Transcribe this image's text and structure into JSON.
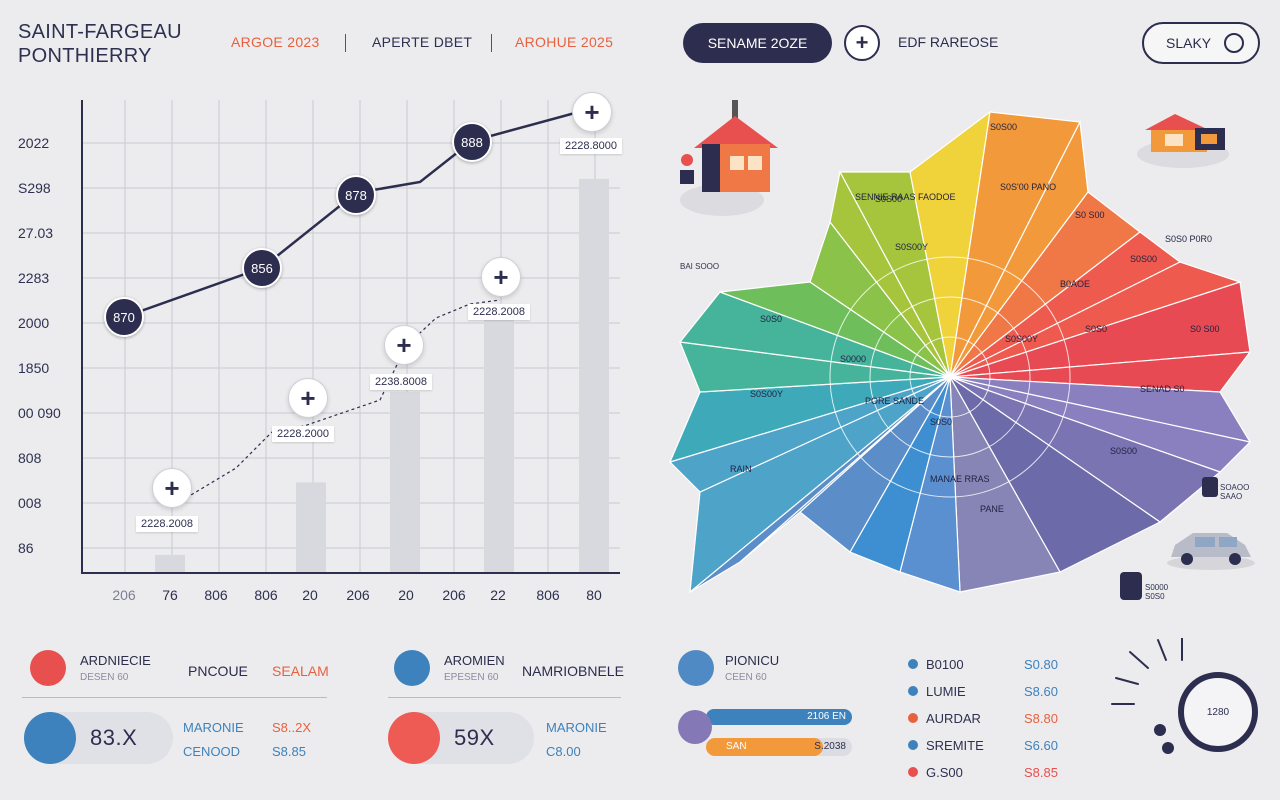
{
  "header": {
    "brand": "SAINT-FARGEAU\nPONTHIERRY",
    "links": [
      {
        "label": "ARGOE 2023",
        "color": "#e8613f"
      },
      {
        "label": "APERTE DBET",
        "color": "#2e3050"
      },
      {
        "label": "AROHUE 2025",
        "color": "#e8613f"
      }
    ],
    "scenario_button": "SENAME 2OZE",
    "add_label": "EDF RAREOSE",
    "user_button": "SLAKY"
  },
  "chart_data": {
    "type": "line",
    "y_ticks": [
      "2022",
      "S298",
      "27.03",
      "2283",
      "2000",
      "1850",
      "00 090",
      "808",
      "008",
      "86"
    ],
    "x_ticks": [
      "206",
      "76",
      "806",
      "806",
      "20",
      "206",
      "20",
      "206",
      "22",
      "806",
      "80"
    ],
    "line_nodes": [
      "870",
      "856",
      "878",
      "888"
    ],
    "line_values": [
      0.58,
      0.69,
      0.8,
      0.91,
      1.0
    ],
    "bars": [
      0.04,
      0.2,
      0.4,
      0.58,
      0.87
    ],
    "callouts": [
      "2228.2008",
      "2228.2000",
      "2238.8008",
      "2228.2008",
      "2228.8000"
    ]
  },
  "map": {
    "regions": [
      "S0S00",
      "S0S00",
      "SENNIE RAAS FAODOE",
      "S0S'00 PANO",
      "S0 S00",
      "S0S0 P0R0",
      "S0S00",
      "B0AOE",
      "S0S0",
      "S0 S00",
      "SENAD S0",
      "S0S00",
      "PANE",
      "MANAE RRAS",
      "RAIN",
      "S0S0",
      "S0000",
      "S0S00Y",
      "S0S00Y",
      "S0S00Y",
      "S0S0",
      "PORE SANDE"
    ],
    "region_colors": [
      "#3d8fd1",
      "#5b8dc9",
      "#4ea3c8",
      "#3da9b9",
      "#46b49b",
      "#6fbe5c",
      "#8ac24a",
      "#a7c43d",
      "#c8cc33",
      "#f0d23a",
      "#f29a3b",
      "#f07746",
      "#ef5a4f",
      "#e84a53",
      "#8a7fbf",
      "#7b74b3",
      "#6c6aa8",
      "#77689e",
      "#8685b6",
      "#5a8fd0"
    ],
    "side_notes": [
      "BAI SOOO",
      "SOAOO SAAO",
      "S0000 S0S0"
    ]
  },
  "cards": [
    {
      "icon_color": "#e8504f",
      "title": "ARDNIECIE",
      "sub": "DESEN 60",
      "c2": "PNCOUE",
      "c3": "SEALAM",
      "big": "83.X",
      "big_color": "#3d82bc",
      "m1": "MARONIE",
      "m2": "CENOOD",
      "v1": "S8..2X",
      "v2": "S8.85"
    },
    {
      "icon_color": "#3d82bc",
      "title": "AROMIEN",
      "sub": "EPESEN 60",
      "c2": "NAMRIOBNELE",
      "c3": "",
      "big": "59X",
      "big_color": "#ee5b55",
      "m1": "MARONIE",
      "m2": "C8.00",
      "v1": "",
      "v2": ""
    }
  ],
  "progress": {
    "title": "PIONICU",
    "sub": "CEEN 60",
    "bar1_label": "2106 EN",
    "bar1_fill": 1.0,
    "bar2_label_left": "SAN",
    "bar2_label_right": "S.2038",
    "bar2_fill": 0.8
  },
  "list": [
    {
      "label": "B0100",
      "value": "S0.80",
      "color": "#3d82bc"
    },
    {
      "label": "LUMIE",
      "value": "S8.60",
      "color": "#3d82bc"
    },
    {
      "label": "AURDAR",
      "value": "S8.80",
      "color": "#e8613f"
    },
    {
      "label": "SREMITE",
      "value": "S6.60",
      "color": "#3d82bc"
    },
    {
      "label": "G.S00",
      "value": "S8.85",
      "color": "#e8504f"
    }
  ],
  "gauge": {
    "value": "1280"
  }
}
